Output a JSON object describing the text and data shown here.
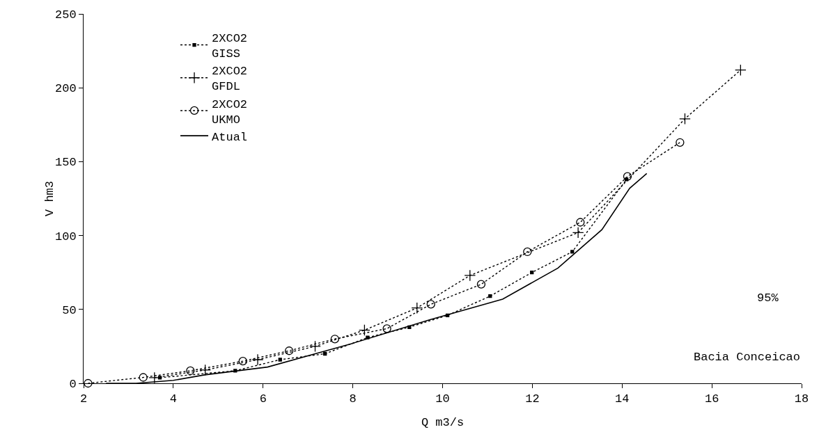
{
  "chart_data": {
    "type": "line",
    "xlabel": "Q m3/s",
    "ylabel": "V hm3",
    "xlim": [
      2,
      18
    ],
    "xticks": [
      2,
      4,
      6,
      8,
      10,
      12,
      14,
      16,
      18
    ],
    "ylim": [
      0,
      250
    ],
    "yticks": [
      0,
      50,
      100,
      150,
      200,
      250
    ],
    "grid": false,
    "legend": "top left",
    "annotations": [
      "95%",
      "Bacia Conceicao"
    ],
    "series": [
      {
        "name": "2XCO2\nGISS",
        "color": "#000000",
        "marker": "square",
        "line_style": "dotted",
        "x": [
          3.7,
          5.38,
          6.38,
          7.38,
          8.33,
          9.26,
          10.11,
          11.06,
          11.99,
          12.89,
          14.1
        ],
        "values": [
          3.8,
          8.5,
          16,
          20,
          31,
          38,
          46,
          59,
          75,
          89,
          138
        ]
      },
      {
        "name": "2XCO2\nGFDL",
        "color": "#000000",
        "marker": "cross",
        "line_style": "dotted",
        "x": [
          3.58,
          4.71,
          5.88,
          7.16,
          8.26,
          9.43,
          10.61,
          13.02,
          15.4,
          16.64
        ],
        "values": [
          3.8,
          9,
          16,
          25,
          36,
          51,
          73,
          102,
          179,
          212
        ]
      },
      {
        "name": "2XCO2\nUKMO",
        "color": "#000000",
        "marker": "circle",
        "line_style": "dotted",
        "x": [
          2.1,
          3.33,
          4.38,
          5.55,
          6.58,
          7.6,
          8.76,
          9.74,
          10.86,
          11.89,
          13.07,
          14.12,
          15.29
        ],
        "values": [
          0,
          4,
          8.5,
          15,
          22,
          30,
          37,
          53.5,
          67,
          89,
          109,
          140,
          163
        ]
      },
      {
        "name": "Atual",
        "color": "#000000",
        "marker": "none",
        "line_style": "solid",
        "x": [
          2.5,
          3.17,
          4,
          4.7,
          6.1,
          7.99,
          9.71,
          11.34,
          12.57,
          13.55,
          14.17,
          14.55
        ],
        "values": [
          0,
          0,
          2,
          5.7,
          11,
          27,
          43,
          57,
          78,
          104,
          132,
          142
        ]
      }
    ]
  }
}
